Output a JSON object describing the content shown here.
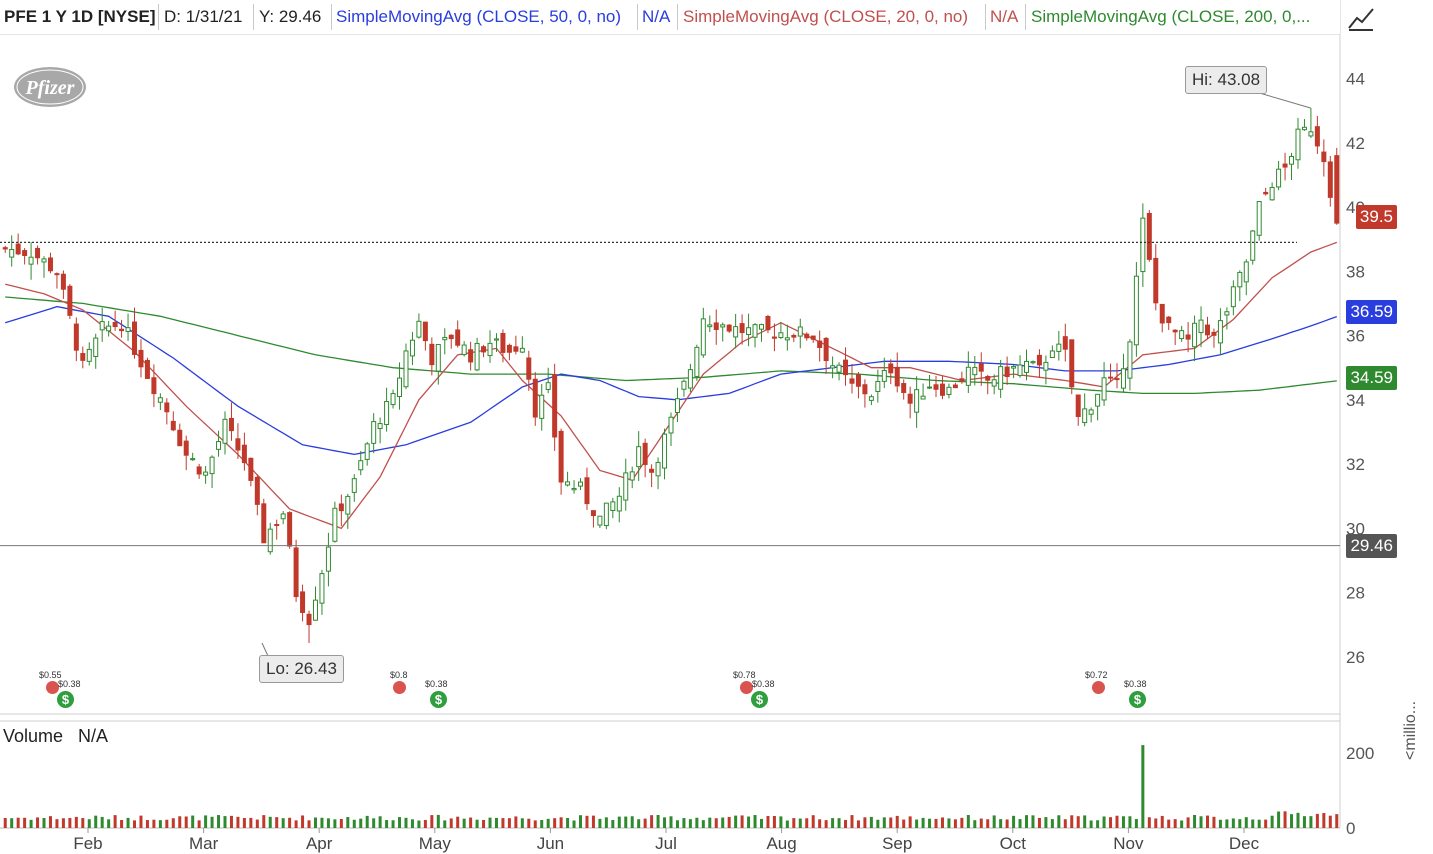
{
  "header": {
    "symbol": "PFE 1 Y 1D [NYSE]",
    "date": "D: 1/31/21",
    "y_readout": "Y: 29.46",
    "sma50_label": "SimpleMovingAvg (CLOSE, 50, 0, no)",
    "sma50_value": "N/A",
    "sma20_label": "SimpleMovingAvg (CLOSE, 20, 0, no)",
    "sma20_value": "N/A",
    "sma200_label": "SimpleMovingAvg (CLOSE, 200, 0,...",
    "colors": {
      "sma50": "#2a3dde",
      "sma20": "#c0504d",
      "sma200": "#2f8a2f"
    }
  },
  "logo_text": "Pfizer",
  "draw_icon": "trend-line-icon",
  "annotations": {
    "high": "Hi: 43.08",
    "low": "Lo: 26.43"
  },
  "price_tags": {
    "last": "39.5",
    "sma50": "36.59",
    "sma200": "34.59",
    "cursor": "29.46",
    "colors": {
      "last": "#c0392b",
      "sma50": "#2a3dde",
      "sma200": "#2f8a2f",
      "cursor": "#555555"
    }
  },
  "events": [
    {
      "label": "$0.55",
      "kind": "earnings"
    },
    {
      "label": "$0.38",
      "kind": "dividend"
    },
    {
      "label": "$0.8",
      "kind": "earnings"
    },
    {
      "label": "$0.38",
      "kind": "dividend"
    },
    {
      "label": "$0.78",
      "kind": "earnings"
    },
    {
      "label": "$0.38",
      "kind": "dividend"
    },
    {
      "label": "$0.72",
      "kind": "earnings"
    },
    {
      "label": "$0.38",
      "kind": "dividend"
    }
  ],
  "volume": {
    "title": "Volume",
    "value": "N/A",
    "unit": "<millio...",
    "ticks": [
      "200",
      "0"
    ]
  },
  "chart_data": {
    "type": "candlestick",
    "symbol": "PFE",
    "y_ticks": [
      26,
      28,
      30,
      32,
      34,
      36,
      38,
      40,
      42,
      44
    ],
    "ylim": [
      24.5,
      45.2
    ],
    "x_ticks": [
      "Feb",
      "Mar",
      "Apr",
      "May",
      "Jun",
      "Jul",
      "Aug",
      "Sep",
      "Oct",
      "Nov",
      "Dec"
    ],
    "resistance_level": 38.9,
    "cursor_level": 29.46,
    "high": 43.08,
    "low": 26.43,
    "last_close": 39.5,
    "close_path": [
      [
        0,
        38.7
      ],
      [
        4,
        38.6
      ],
      [
        8,
        38.0
      ],
      [
        10,
        36.5
      ],
      [
        12,
        35.0
      ],
      [
        15,
        36.2
      ],
      [
        18,
        36.4
      ],
      [
        22,
        34.8
      ],
      [
        25,
        33.7
      ],
      [
        28,
        32.3
      ],
      [
        31,
        31.7
      ],
      [
        34,
        33.2
      ],
      [
        37,
        32.1
      ],
      [
        40,
        29.7
      ],
      [
        43,
        30.5
      ],
      [
        45,
        28.0
      ],
      [
        47,
        27.2
      ],
      [
        49,
        28.7
      ],
      [
        51,
        30.4
      ],
      [
        54,
        31.4
      ],
      [
        57,
        33.2
      ],
      [
        60,
        34.0
      ],
      [
        62,
        35.5
      ],
      [
        64,
        36.4
      ],
      [
        66,
        35.3
      ],
      [
        69,
        36.0
      ],
      [
        72,
        35.4
      ],
      [
        75,
        35.8
      ],
      [
        78,
        35.5
      ],
      [
        80,
        35.8
      ],
      [
        82,
        33.7
      ],
      [
        84,
        34.3
      ],
      [
        86,
        31.5
      ],
      [
        89,
        31.2
      ],
      [
        92,
        30.3
      ],
      [
        95,
        31.0
      ],
      [
        98,
        32.5
      ],
      [
        100,
        31.8
      ],
      [
        103,
        33.3
      ],
      [
        106,
        35.0
      ],
      [
        108,
        36.6
      ],
      [
        110,
        36.4
      ],
      [
        113,
        36.2
      ],
      [
        116,
        36.1
      ],
      [
        119,
        36.1
      ],
      [
        122,
        36.1
      ],
      [
        125,
        36.0
      ],
      [
        128,
        35.1
      ],
      [
        131,
        34.4
      ],
      [
        134,
        34.2
      ],
      [
        137,
        35.0
      ],
      [
        140,
        33.9
      ],
      [
        143,
        34.5
      ],
      [
        146,
        34.3
      ],
      [
        149,
        34.9
      ],
      [
        152,
        34.6
      ],
      [
        155,
        34.9
      ],
      [
        158,
        35.1
      ],
      [
        160,
        34.9
      ],
      [
        162,
        35.7
      ],
      [
        164,
        35.4
      ],
      [
        166,
        33.4
      ],
      [
        168,
        33.9
      ],
      [
        170,
        34.6
      ],
      [
        172,
        34.4
      ],
      [
        174,
        36.0
      ],
      [
        176,
        39.5
      ],
      [
        178,
        37.0
      ],
      [
        180,
        36.2
      ],
      [
        183,
        35.8
      ],
      [
        185,
        36.5
      ],
      [
        187,
        35.9
      ],
      [
        189,
        36.8
      ],
      [
        192,
        38.3
      ],
      [
        194,
        40.0
      ],
      [
        196,
        40.8
      ],
      [
        198,
        41.2
      ],
      [
        200,
        42.2
      ],
      [
        202,
        42.5
      ],
      [
        204,
        41.6
      ],
      [
        206,
        39.5
      ]
    ],
    "sma20_path": [
      [
        0,
        37.6
      ],
      [
        6,
        37.3
      ],
      [
        12,
        36.8
      ],
      [
        20,
        35.5
      ],
      [
        28,
        33.8
      ],
      [
        36,
        32.3
      ],
      [
        44,
        30.6
      ],
      [
        52,
        30.0
      ],
      [
        58,
        31.6
      ],
      [
        64,
        34.0
      ],
      [
        70,
        35.4
      ],
      [
        76,
        35.6
      ],
      [
        80,
        34.6
      ],
      [
        86,
        33.5
      ],
      [
        92,
        31.8
      ],
      [
        97,
        31.5
      ],
      [
        102,
        33.0
      ],
      [
        108,
        34.8
      ],
      [
        114,
        35.8
      ],
      [
        120,
        36.4
      ],
      [
        128,
        35.6
      ],
      [
        134,
        35.0
      ],
      [
        140,
        35.0
      ],
      [
        148,
        34.6
      ],
      [
        156,
        34.8
      ],
      [
        164,
        34.6
      ],
      [
        170,
        34.4
      ],
      [
        176,
        35.4
      ],
      [
        184,
        35.6
      ],
      [
        190,
        36.5
      ],
      [
        196,
        37.8
      ],
      [
        202,
        38.6
      ],
      [
        206,
        38.9
      ]
    ],
    "sma50_path": [
      [
        0,
        36.4
      ],
      [
        8,
        36.9
      ],
      [
        16,
        36.6
      ],
      [
        26,
        35.3
      ],
      [
        36,
        33.8
      ],
      [
        46,
        32.6
      ],
      [
        54,
        32.3
      ],
      [
        62,
        32.6
      ],
      [
        72,
        33.3
      ],
      [
        80,
        34.4
      ],
      [
        86,
        34.8
      ],
      [
        92,
        34.6
      ],
      [
        98,
        34.1
      ],
      [
        104,
        34.0
      ],
      [
        112,
        34.2
      ],
      [
        120,
        34.8
      ],
      [
        128,
        35.0
      ],
      [
        136,
        35.2
      ],
      [
        146,
        35.2
      ],
      [
        156,
        35.1
      ],
      [
        164,
        34.9
      ],
      [
        172,
        34.9
      ],
      [
        180,
        35.1
      ],
      [
        188,
        35.4
      ],
      [
        196,
        35.9
      ],
      [
        202,
        36.3
      ],
      [
        206,
        36.59
      ]
    ],
    "sma200_path": [
      [
        0,
        37.2
      ],
      [
        12,
        37.0
      ],
      [
        24,
        36.6
      ],
      [
        36,
        36.0
      ],
      [
        48,
        35.4
      ],
      [
        60,
        35.0
      ],
      [
        72,
        34.8
      ],
      [
        84,
        34.8
      ],
      [
        96,
        34.6
      ],
      [
        108,
        34.7
      ],
      [
        120,
        34.9
      ],
      [
        132,
        34.8
      ],
      [
        144,
        34.6
      ],
      [
        156,
        34.5
      ],
      [
        168,
        34.3
      ],
      [
        176,
        34.2
      ],
      [
        184,
        34.2
      ],
      [
        194,
        34.3
      ],
      [
        206,
        34.59
      ]
    ],
    "volume_ticks": [
      0,
      200
    ],
    "volume_spike": 220
  }
}
